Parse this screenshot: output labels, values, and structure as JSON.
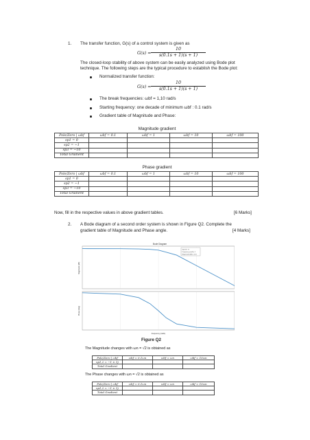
{
  "q1": {
    "number": "1.",
    "intro": "The transfer function, G(s) of a control system is given as",
    "tf_lhs": "G(s) =",
    "tf_num": "10",
    "tf_den": "s(0.1s + 1)(s + 1)",
    "para_line1": "The closed-loop stability of above system can be easily analyzed using Bode plot",
    "para_line2": "technique. The following steps are the typical procedure to establish the Bode plot:",
    "bullet_normalized": "Normalized transfer function:",
    "bullet_break": "The break frequencies: ωbf = 1,10 rad/s",
    "bullet_start": "Starting frequency: one decade of minimum ωbf : 0.1 rad/s",
    "bullet_table": "Gradient table of Magnitude and Phase:",
    "mag_title": "Magnitude gradient",
    "phase_title": "Phase gradient",
    "table_header": [
      "Pole/Zero | ωbf",
      "ωbf = 0.1",
      "ωbf = 1",
      "ωbf = 10",
      "ωbf = 100"
    ],
    "table_rows": [
      "sp1 = 0",
      "sp2 = −1",
      "sp3 = −10",
      "Total Gradient"
    ],
    "fill_instruction": "Now, fill in the respective values in above gradient tables.",
    "marks": "[6 Marks]"
  },
  "q2": {
    "number": "2.",
    "line1": "A Bode diagram of a second order system is shown in Figure Q2. Complete the",
    "line2": "gradient table of Magnitude and Phase angle.",
    "marks": "[4 Marks]",
    "plot_title": "Bode Diagram",
    "plot_xlabel": "Frequency (rad/s)",
    "mag_ylabel": "Magnitude (dB)",
    "phase_ylabel": "Phase (deg)",
    "legend": [
      "System: G",
      "Frequency (rad/s): 1",
      "Magnitude (dB): -3.01"
    ],
    "figure_caption": "Figure Q2",
    "mag_change": "The Magnitude changes with ωn = √2 is obtained as",
    "phase_change": "The Phase changes with ωn = √2 is obtained as",
    "small_header": [
      "Pole/Zero | ωbf",
      "ωbf = 0.1ωn",
      "ωbf = ωn",
      "ωbf = 10ωn"
    ],
    "small_rows": [
      "sp1,2 = −1 ± 1j",
      "Total Gradient"
    ]
  },
  "chart_data": {
    "type": "line",
    "title": "Bode Diagram",
    "xlabel": "Frequency (rad/s)",
    "series": [
      {
        "name": "Magnitude",
        "x": [
          0.01,
          0.1,
          0.3,
          0.6,
          1,
          1.6,
          3,
          10,
          100
        ],
        "values": [
          0,
          -0.1,
          -0.6,
          -1.5,
          -3,
          -7,
          -13,
          -34,
          -74
        ]
      },
      {
        "name": "Phase",
        "x": [
          0.01,
          0.1,
          0.3,
          0.6,
          1,
          1.6,
          3,
          10,
          100
        ],
        "values": [
          -1,
          -8,
          -25,
          -55,
          -90,
          -125,
          -155,
          -172,
          -179
        ]
      }
    ]
  }
}
